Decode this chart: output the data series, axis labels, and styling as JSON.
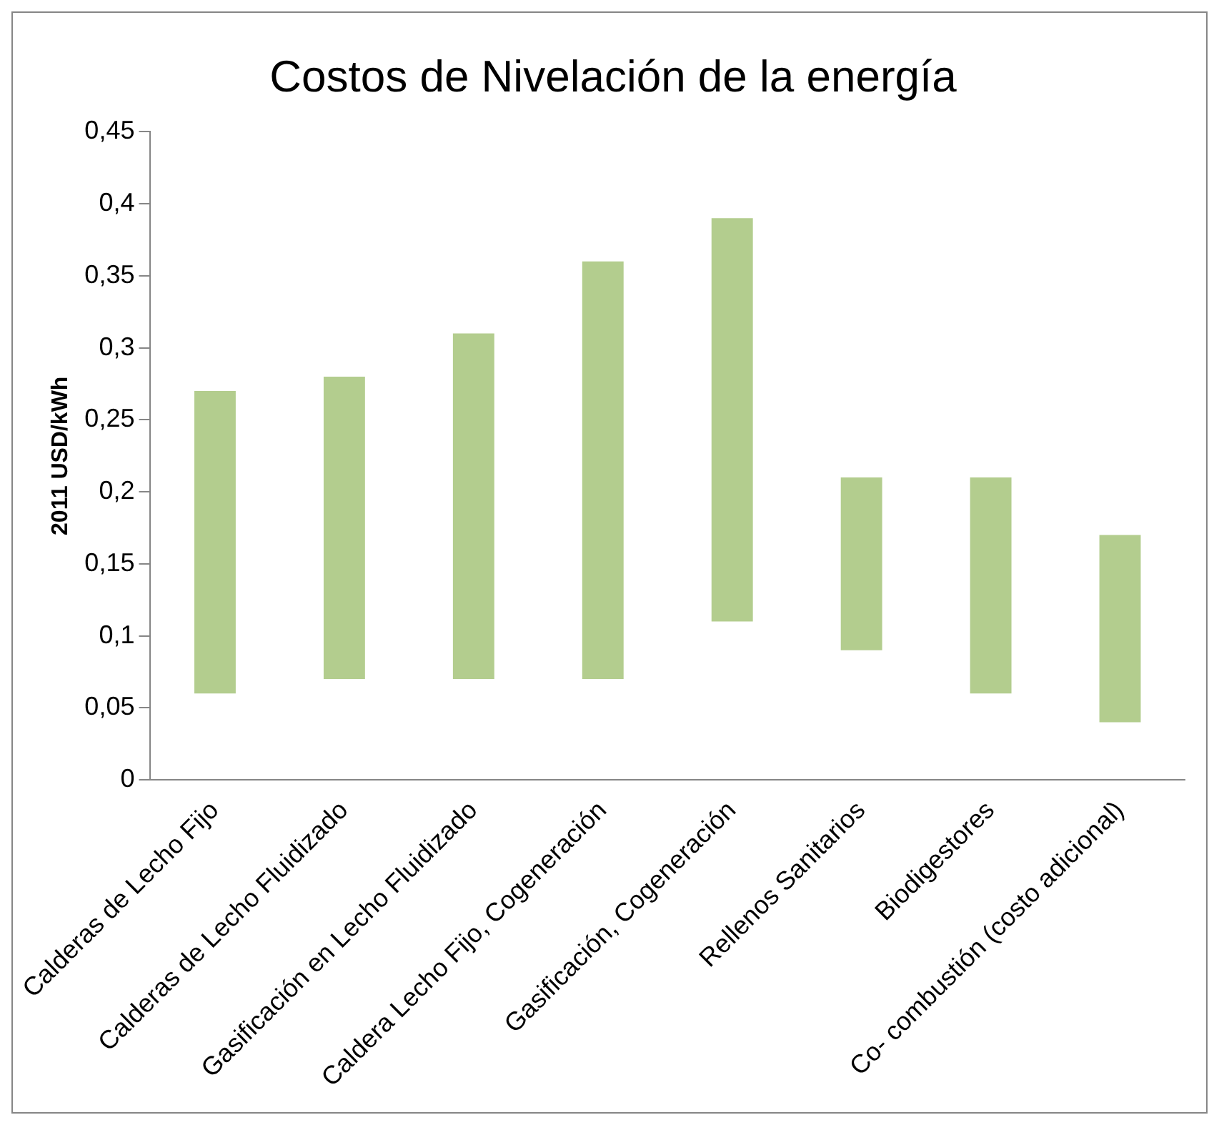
{
  "chart_data": {
    "type": "bar",
    "title": "Costos de Nivelación de la energía",
    "ylabel": "2011 USD/kWh",
    "categories": [
      "Calderas de Lecho Fijo",
      "Calderas de Lecho Fluidizado",
      "Gasificación en Lecho Fluidizado",
      "Caldera Lecho Fijo, Cogeneración",
      "Gasificación, Cogeneración",
      "Rellenos Sanitarios",
      "Biodigestores",
      "Co- combustión (costo adicional)"
    ],
    "base": [
      0.06,
      0.07,
      0.07,
      0.07,
      0.11,
      0.09,
      0.06,
      0.04
    ],
    "values": [
      0.21,
      0.21,
      0.24,
      0.29,
      0.28,
      0.12,
      0.15,
      0.13
    ],
    "color": "#b3cd8e",
    "ylim": [
      0,
      0.45
    ],
    "yticks": [
      0,
      {
        "value": 0.05,
        "label": "0,05"
      },
      {
        "value": 0.1,
        "label": "0,1"
      },
      {
        "value": 0.15,
        "label": "0,15"
      },
      {
        "value": 0.2,
        "label": "0,2"
      },
      {
        "value": 0.25,
        "label": "0,25"
      },
      {
        "value": 0.3,
        "label": "0,3"
      },
      {
        "value": 0.35,
        "label": "0,35"
      },
      {
        "value": 0.4,
        "label": "0,4"
      },
      {
        "value": 0.45,
        "label": "0,45"
      }
    ],
    "grid": false,
    "legend": false
  }
}
